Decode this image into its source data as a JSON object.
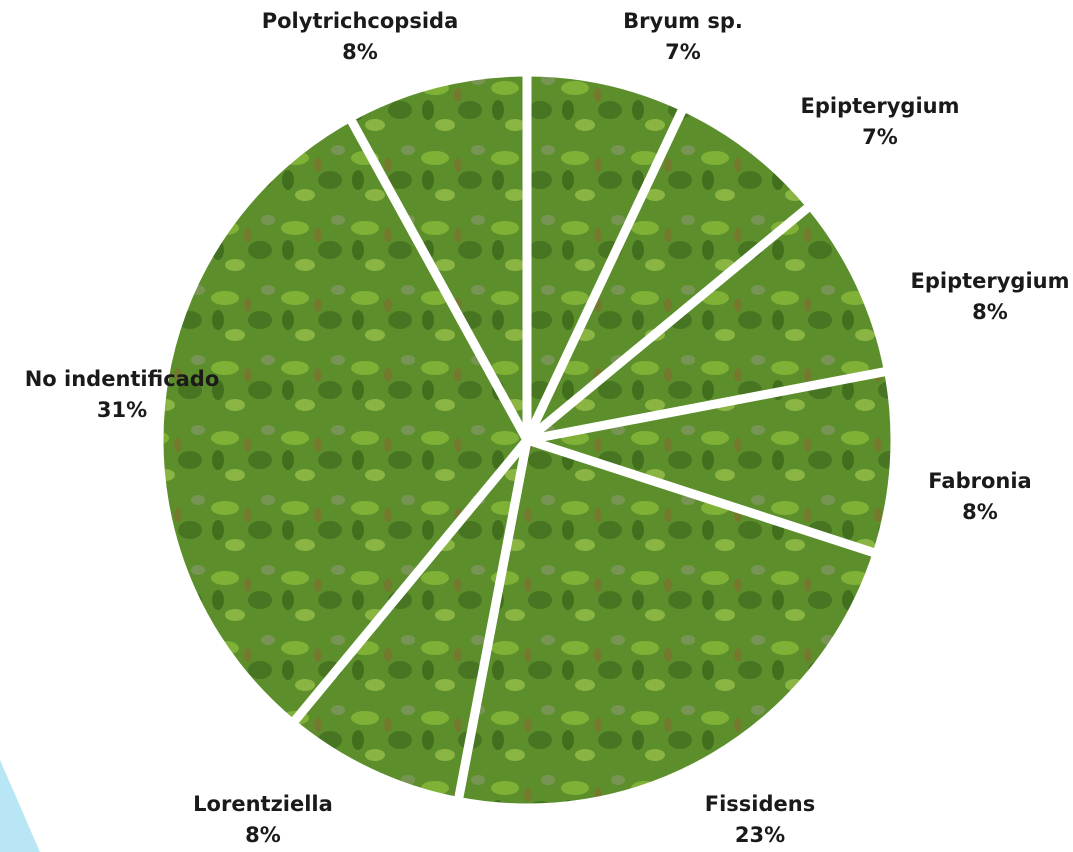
{
  "chart_data": {
    "type": "pie",
    "categories": [
      "Bryum sp.",
      "Epipterygium",
      "Epipterygium",
      "Fabronia",
      "Fissidens",
      "Lorentziella",
      "No indentificado",
      "Polytrichcopsida"
    ],
    "values": [
      7,
      7,
      8,
      8,
      23,
      8,
      31,
      8
    ],
    "value_labels": [
      "7%",
      "7%",
      "8%",
      "8%",
      "23%",
      "8%",
      "31%",
      "8%"
    ],
    "color": "#5c8f2c"
  }
}
